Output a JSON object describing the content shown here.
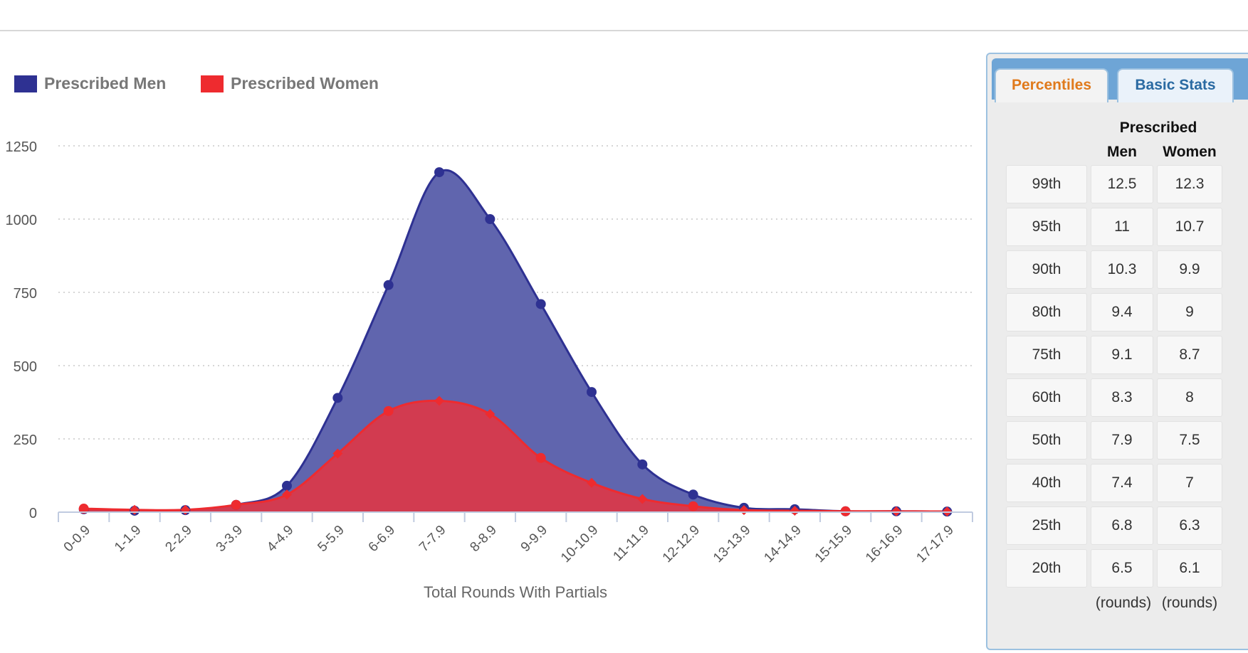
{
  "chart_data": {
    "type": "area",
    "categories": [
      "0-0.9",
      "1-1.9",
      "2-2.9",
      "3-3.9",
      "4-4.9",
      "5-5.9",
      "6-6.9",
      "7-7.9",
      "8-8.9",
      "9-9.9",
      "10-10.9",
      "11-11.9",
      "12-12.9",
      "13-13.9",
      "14-14.9",
      "15-15.9",
      "16-16.9",
      "17-17.9"
    ],
    "series": [
      {
        "name": "Prescribed Men",
        "color": "#2e3192",
        "fill": "#6065ae",
        "values": [
          10,
          5,
          7,
          25,
          90,
          390,
          775,
          1160,
          1000,
          710,
          410,
          163,
          60,
          15,
          10,
          3,
          3,
          2
        ]
      },
      {
        "name": "Prescribed Women",
        "color": "#ee2b2f",
        "fill": "#d63a4c",
        "values": [
          12,
          8,
          8,
          25,
          60,
          200,
          345,
          380,
          335,
          185,
          100,
          45,
          20,
          7,
          5,
          3,
          3,
          2
        ]
      }
    ],
    "xlabel": "Total Rounds With Partials",
    "ylabel": "",
    "ylim": [
      0,
      1250
    ],
    "yticks": [
      0,
      250,
      500,
      750,
      1000,
      1250
    ],
    "grid": "horizontal dotted",
    "legend": "top-left"
  },
  "panel": {
    "tabs": [
      {
        "label": "Percentiles",
        "active": true
      },
      {
        "label": "Basic Stats",
        "active": false
      }
    ],
    "header_group": "Prescribed",
    "columns": [
      "Men",
      "Women"
    ],
    "rows": [
      {
        "pct": "99th",
        "men": "12.5",
        "women": "12.3"
      },
      {
        "pct": "95th",
        "men": "11",
        "women": "10.7"
      },
      {
        "pct": "90th",
        "men": "10.3",
        "women": "9.9"
      },
      {
        "pct": "80th",
        "men": "9.4",
        "women": "9"
      },
      {
        "pct": "75th",
        "men": "9.1",
        "women": "8.7"
      },
      {
        "pct": "60th",
        "men": "8.3",
        "women": "8"
      },
      {
        "pct": "50th",
        "men": "7.9",
        "women": "7.5"
      },
      {
        "pct": "40th",
        "men": "7.4",
        "women": "7"
      },
      {
        "pct": "25th",
        "men": "6.8",
        "women": "6.3"
      },
      {
        "pct": "20th",
        "men": "6.5",
        "women": "6.1"
      }
    ],
    "unit": "(rounds)"
  }
}
